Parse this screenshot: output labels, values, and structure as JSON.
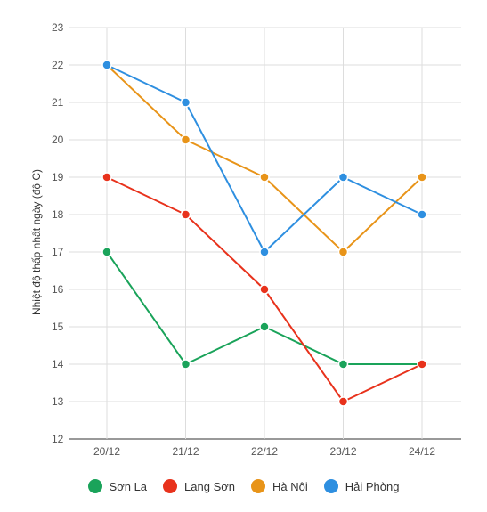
{
  "chart_data": {
    "type": "line",
    "ylabel": "Nhiệt độ thấp nhất ngày (độ C)",
    "xlabel": "",
    "categories": [
      "20/12",
      "21/12",
      "22/12",
      "23/12",
      "24/12"
    ],
    "ylim": [
      12,
      23
    ],
    "yticks": [
      12,
      13,
      14,
      15,
      16,
      17,
      18,
      19,
      20,
      21,
      22,
      23
    ],
    "grid": true,
    "legend_position": "bottom",
    "series": [
      {
        "name": "Sơn La",
        "color": "#1aa35a",
        "values": [
          17,
          14,
          15,
          14,
          14
        ]
      },
      {
        "name": "Lạng Sơn",
        "color": "#e8321c",
        "values": [
          19,
          18,
          16,
          13,
          14
        ]
      },
      {
        "name": "Hà Nội",
        "color": "#e89419",
        "values": [
          22,
          20,
          19,
          17,
          19
        ]
      },
      {
        "name": "Hải Phòng",
        "color": "#2e8fe0",
        "values": [
          22,
          21,
          17,
          19,
          18
        ]
      }
    ]
  }
}
